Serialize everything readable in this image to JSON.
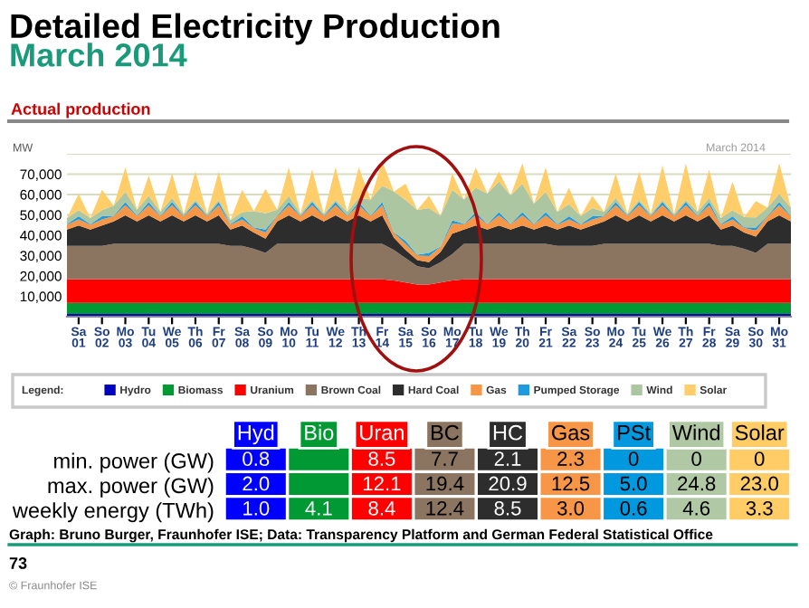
{
  "chart_data": [
    {
      "type": "area",
      "stacked": true,
      "title": "Detailed Electricity Production",
      "subtitle": "March 2014",
      "ylabel": "MW",
      "annotations": [
        "Actual production",
        "March 2014",
        "Graph: Bruno Burger, Fraunhofer ISE; Data: Transparency Platform and German Federal Statistical Office",
        "73",
        "© Fraunhofer ISE"
      ],
      "categories": [
        null,
        "Sa\n01",
        null,
        "So\n02",
        null,
        "Mo\n03",
        null,
        "Tu\n04",
        null,
        "We\n05",
        null,
        "Th\n06",
        null,
        "Fr\n07",
        null,
        "Sa\n08",
        null,
        "So\n09",
        null,
        "Mo\n10",
        null,
        "Tu\n11",
        null,
        "We\n12",
        null,
        "Th\n13",
        null,
        "Fr\n14",
        null,
        "Sa\n15",
        null,
        "So\n16",
        null,
        "Mo\n17",
        null,
        "Tu\n18",
        null,
        "We\n19",
        null,
        "Th\n20",
        null,
        "Fr\n21",
        null,
        "Sa\n22",
        null,
        "So\n23",
        null,
        "Mo\n24",
        null,
        "Tu\n25",
        null,
        "We\n26",
        null,
        "Th\n27",
        null,
        "Fr\n28",
        null,
        "Sa\n29",
        null,
        "So\n30",
        null,
        "Mo\n31",
        null
      ],
      "ylim": [
        0,
        80000
      ],
      "yticks": [
        {
          "value": 0,
          "label": null
        },
        {
          "value": 10000,
          "label": "10,000"
        },
        {
          "value": 20000,
          "label": "20,000"
        },
        {
          "value": 30000,
          "label": "30,000"
        },
        {
          "value": 40000,
          "label": "40,000"
        },
        {
          "value": 50000,
          "label": "50,000"
        },
        {
          "value": 60000,
          "label": "60,000"
        },
        {
          "value": 70000,
          "label": "70,000"
        },
        {
          "value": 80000,
          "label": null
        }
      ],
      "grid": "y",
      "legend": "bottom",
      "legend_title": "Legend:",
      "series": [
        {
          "name": "Hydro",
          "color": "#0000c0",
          "values": [
            1300,
            1300,
            1300,
            1300,
            1300,
            1300,
            1300,
            1300,
            1300,
            1300,
            1300,
            1300,
            1300,
            1300,
            1300,
            1300,
            1300,
            1300,
            1300,
            1300,
            1300,
            1300,
            1300,
            1300,
            1300,
            1300,
            1300,
            1300,
            1300,
            1300,
            1300,
            1300,
            1300,
            1300,
            1300,
            1300,
            1300,
            1300,
            1300,
            1300,
            1300,
            1300,
            1300,
            1300,
            1300,
            1300,
            1300,
            1300,
            1300,
            1300,
            1300,
            1300,
            1300,
            1300,
            1300,
            1300,
            1300,
            1300,
            1300,
            1300,
            1300,
            1300,
            1300
          ]
        },
        {
          "name": "Biomass",
          "color": "#009933",
          "values": [
            5500,
            5500,
            5500,
            5500,
            5500,
            5500,
            5500,
            5500,
            5500,
            5500,
            5500,
            5500,
            5500,
            5500,
            5500,
            5500,
            5500,
            5500,
            5500,
            5500,
            5500,
            5500,
            5500,
            5500,
            5500,
            5500,
            5500,
            5500,
            5500,
            5500,
            5500,
            5500,
            5500,
            5500,
            5500,
            5500,
            5500,
            5500,
            5500,
            5500,
            5500,
            5500,
            5500,
            5500,
            5500,
            5500,
            5500,
            5500,
            5500,
            5500,
            5500,
            5500,
            5500,
            5500,
            5500,
            5500,
            5500,
            5500,
            5500,
            5500,
            5500,
            5500,
            5500
          ]
        },
        {
          "name": "Uranium",
          "color": "#ff0000",
          "values": [
            11500,
            11500,
            11500,
            11500,
            11500,
            11500,
            11500,
            11500,
            11500,
            11500,
            11500,
            11500,
            11500,
            11500,
            11500,
            11500,
            11500,
            11500,
            11500,
            11500,
            11500,
            11500,
            11500,
            11500,
            11500,
            11500,
            11500,
            11500,
            11000,
            10000,
            9000,
            9000,
            10000,
            11000,
            11500,
            11500,
            11500,
            11500,
            11500,
            11500,
            11500,
            11500,
            11500,
            11500,
            11500,
            11500,
            11500,
            11500,
            11500,
            11500,
            11500,
            11500,
            11500,
            11500,
            11500,
            11500,
            11500,
            11500,
            11500,
            11500,
            11500,
            11500,
            11500
          ]
        },
        {
          "name": "Brown Coal",
          "color": "#8c7560",
          "values": [
            16500,
            16500,
            16500,
            16500,
            17500,
            17500,
            17500,
            17500,
            17500,
            17500,
            17500,
            17500,
            17500,
            17500,
            16500,
            16500,
            15000,
            13000,
            17500,
            17500,
            17500,
            17500,
            17500,
            17500,
            17500,
            17500,
            17500,
            17500,
            15000,
            12000,
            9000,
            8000,
            10000,
            13000,
            17500,
            17500,
            17500,
            17500,
            17500,
            17500,
            17500,
            17500,
            16500,
            16500,
            16500,
            16500,
            17500,
            17500,
            17500,
            17500,
            17500,
            17500,
            17500,
            17500,
            17500,
            17500,
            16500,
            16500,
            15000,
            13000,
            17500,
            17500,
            17500
          ]
        },
        {
          "name": "Hard Coal",
          "color": "#2d2d2d",
          "values": [
            8000,
            10000,
            8000,
            10000,
            11000,
            14000,
            11000,
            14000,
            11000,
            14000,
            11000,
            14000,
            11000,
            14000,
            8000,
            10000,
            8000,
            7000,
            11000,
            14000,
            11000,
            14000,
            11000,
            14000,
            11000,
            14000,
            11000,
            14000,
            6000,
            4000,
            3000,
            3000,
            5000,
            10000,
            7000,
            9000,
            7000,
            9000,
            7000,
            9000,
            7000,
            9000,
            8000,
            10000,
            8000,
            10000,
            11000,
            14000,
            11000,
            14000,
            11000,
            14000,
            11000,
            14000,
            11000,
            14000,
            8000,
            10000,
            8000,
            8000,
            11000,
            14000,
            11000
          ]
        },
        {
          "name": "Gas",
          "color": "#f79646",
          "values": [
            2300,
            3000,
            2300,
            3000,
            2500,
            5000,
            2500,
            5000,
            2500,
            5000,
            2500,
            5000,
            2500,
            5000,
            2300,
            3000,
            2300,
            3000,
            2500,
            5000,
            2500,
            5000,
            2500,
            5000,
            2500,
            5000,
            2500,
            5000,
            2300,
            3000,
            2300,
            3000,
            2500,
            5000,
            2500,
            5000,
            2500,
            5000,
            2500,
            5000,
            2500,
            5000,
            2300,
            3000,
            2300,
            3000,
            2500,
            5000,
            2500,
            5000,
            2500,
            5000,
            2500,
            5000,
            2500,
            5000,
            2300,
            3000,
            2300,
            3000,
            2500,
            5000,
            2500
          ]
        },
        {
          "name": "Pumped Storage",
          "color": "#1e9be0",
          "values": [
            300,
            1500,
            300,
            1500,
            300,
            1500,
            300,
            1500,
            300,
            1500,
            300,
            1500,
            300,
            1500,
            300,
            1500,
            300,
            1500,
            300,
            1500,
            300,
            1500,
            300,
            1500,
            300,
            1500,
            300,
            1500,
            300,
            1500,
            300,
            1500,
            300,
            1500,
            300,
            1500,
            300,
            1500,
            300,
            1500,
            300,
            1500,
            300,
            1500,
            300,
            1500,
            300,
            1500,
            300,
            1500,
            300,
            1500,
            300,
            1500,
            300,
            1500,
            300,
            1500,
            300,
            1500,
            300,
            1500,
            300
          ]
        },
        {
          "name": "Wind",
          "color": "#adc6a2",
          "values": [
            3000,
            3000,
            3000,
            3000,
            5000,
            5000,
            3000,
            3000,
            2000,
            2000,
            1000,
            1000,
            1000,
            1000,
            2000,
            2000,
            8000,
            8000,
            3000,
            3000,
            1000,
            1000,
            1000,
            1000,
            2000,
            2000,
            8000,
            8000,
            20000,
            20000,
            22000,
            22000,
            15000,
            15000,
            12000,
            12000,
            15000,
            15000,
            14000,
            14000,
            10000,
            10000,
            6000,
            6000,
            4000,
            4000,
            2000,
            2000,
            1000,
            1000,
            1000,
            1000,
            1000,
            1000,
            2000,
            2000,
            3000,
            3000,
            5000,
            5000,
            4000,
            4000,
            4000
          ]
        },
        {
          "name": "Solar",
          "color": "#ffcd6a",
          "values": [
            0,
            8000,
            0,
            10000,
            0,
            12000,
            0,
            10000,
            0,
            12000,
            0,
            14000,
            0,
            14000,
            0,
            11000,
            0,
            12000,
            0,
            14000,
            0,
            15000,
            0,
            16000,
            0,
            15000,
            0,
            12000,
            0,
            8000,
            0,
            6000,
            0,
            8000,
            0,
            10000,
            0,
            5000,
            0,
            10000,
            0,
            12000,
            0,
            8000,
            0,
            6000,
            0,
            12000,
            0,
            14000,
            0,
            17000,
            0,
            18000,
            0,
            14000,
            0,
            14000,
            0,
            8000,
            0,
            15000,
            0
          ]
        }
      ]
    },
    {
      "type": "heatmap",
      "categories": [
        "Hyd",
        "Bio",
        "Uran",
        "BC",
        "HC",
        "Gas",
        "PSt",
        "Wind",
        "Solar"
      ],
      "y_categories": [
        "min. power (GW)",
        "max. power (GW)",
        "weekly energy (TWh)"
      ],
      "colors": [
        "#0000ff",
        "#009933",
        "#ff0000",
        "#8c7560",
        "#2d2d2d",
        "#f79646",
        "#0099e0",
        "#b0c8a4",
        "#ffcc66"
      ],
      "cells": [
        [
          0.8,
          null,
          8.5,
          7.7,
          2.1,
          2.3,
          0,
          0,
          0
        ],
        [
          2.0,
          null,
          12.1,
          19.4,
          20.9,
          12.5,
          5.0,
          24.8,
          23.0
        ],
        [
          1.0,
          4.1,
          8.4,
          12.4,
          8.5,
          3.0,
          0.6,
          4.6,
          3.3
        ]
      ],
      "cell_labels": [
        [
          "0.8",
          null,
          "8.5",
          "7.7",
          "2.1",
          "2.3",
          "0",
          "0",
          "0"
        ],
        [
          "2.0",
          null,
          "12.1",
          "19.4",
          "20.9",
          "12.5",
          "5.0",
          "24.8",
          "23.0"
        ],
        [
          "1.0",
          "4.1",
          "8.4",
          "12.4",
          "8.5",
          "3.0",
          "0.6",
          "4.6",
          "3.3"
        ]
      ]
    }
  ]
}
